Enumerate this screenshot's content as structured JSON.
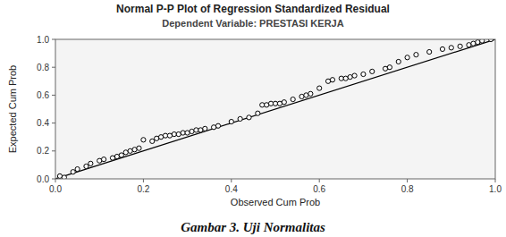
{
  "chart_data": {
    "type": "scatter",
    "title": "Normal P-P Plot of Regression Standardized Residual",
    "subtitle": "Dependent Variable: PRESTASI KERJA",
    "caption": "Gambar 3. Uji Normalitas",
    "xlabel": "Observed Cum Prob",
    "ylabel": "Expected Cum Prob",
    "xlim": [
      0.0,
      1.0
    ],
    "ylim": [
      0.0,
      1.0
    ],
    "xticks": [
      {
        "value": 0.0,
        "label": "0.0"
      },
      0.2,
      0.4,
      0.6,
      0.8,
      {
        "value": 1.0,
        "label": "1.0"
      }
    ],
    "yticks": [
      {
        "value": 0.0,
        "label": "0.0"
      },
      0.2,
      0.4,
      0.6,
      0.8,
      {
        "value": 1.0,
        "label": "1.0"
      }
    ],
    "series": [
      {
        "type": "line",
        "color": "#000000",
        "x": [
          0,
          1
        ],
        "values": [
          0,
          1
        ]
      },
      {
        "type": "scatter",
        "color": "#000000",
        "x": [
          0.01,
          0.02,
          0.04,
          0.05,
          0.07,
          0.08,
          0.1,
          0.11,
          0.13,
          0.14,
          0.15,
          0.16,
          0.17,
          0.18,
          0.19,
          0.2,
          0.22,
          0.23,
          0.24,
          0.25,
          0.26,
          0.27,
          0.28,
          0.29,
          0.3,
          0.31,
          0.32,
          0.33,
          0.34,
          0.36,
          0.37,
          0.4,
          0.42,
          0.44,
          0.46,
          0.47,
          0.48,
          0.49,
          0.5,
          0.51,
          0.52,
          0.54,
          0.56,
          0.57,
          0.58,
          0.6,
          0.62,
          0.63,
          0.65,
          0.66,
          0.67,
          0.68,
          0.7,
          0.72,
          0.75,
          0.76,
          0.78,
          0.8,
          0.82,
          0.85,
          0.88,
          0.9,
          0.92,
          0.94,
          0.95,
          0.96,
          0.97,
          0.99
        ],
        "values": [
          0.02,
          0.01,
          0.05,
          0.07,
          0.09,
          0.11,
          0.13,
          0.14,
          0.15,
          0.16,
          0.17,
          0.19,
          0.2,
          0.21,
          0.22,
          0.28,
          0.27,
          0.29,
          0.3,
          0.31,
          0.31,
          0.32,
          0.32,
          0.33,
          0.33,
          0.34,
          0.35,
          0.35,
          0.36,
          0.37,
          0.38,
          0.41,
          0.43,
          0.44,
          0.47,
          0.53,
          0.53,
          0.54,
          0.54,
          0.54,
          0.55,
          0.57,
          0.59,
          0.6,
          0.61,
          0.65,
          0.7,
          0.71,
          0.72,
          0.72,
          0.73,
          0.74,
          0.75,
          0.77,
          0.79,
          0.8,
          0.84,
          0.87,
          0.89,
          0.91,
          0.93,
          0.94,
          0.95,
          0.96,
          0.97,
          0.98,
          0.99,
          1.0
        ]
      }
    ]
  }
}
